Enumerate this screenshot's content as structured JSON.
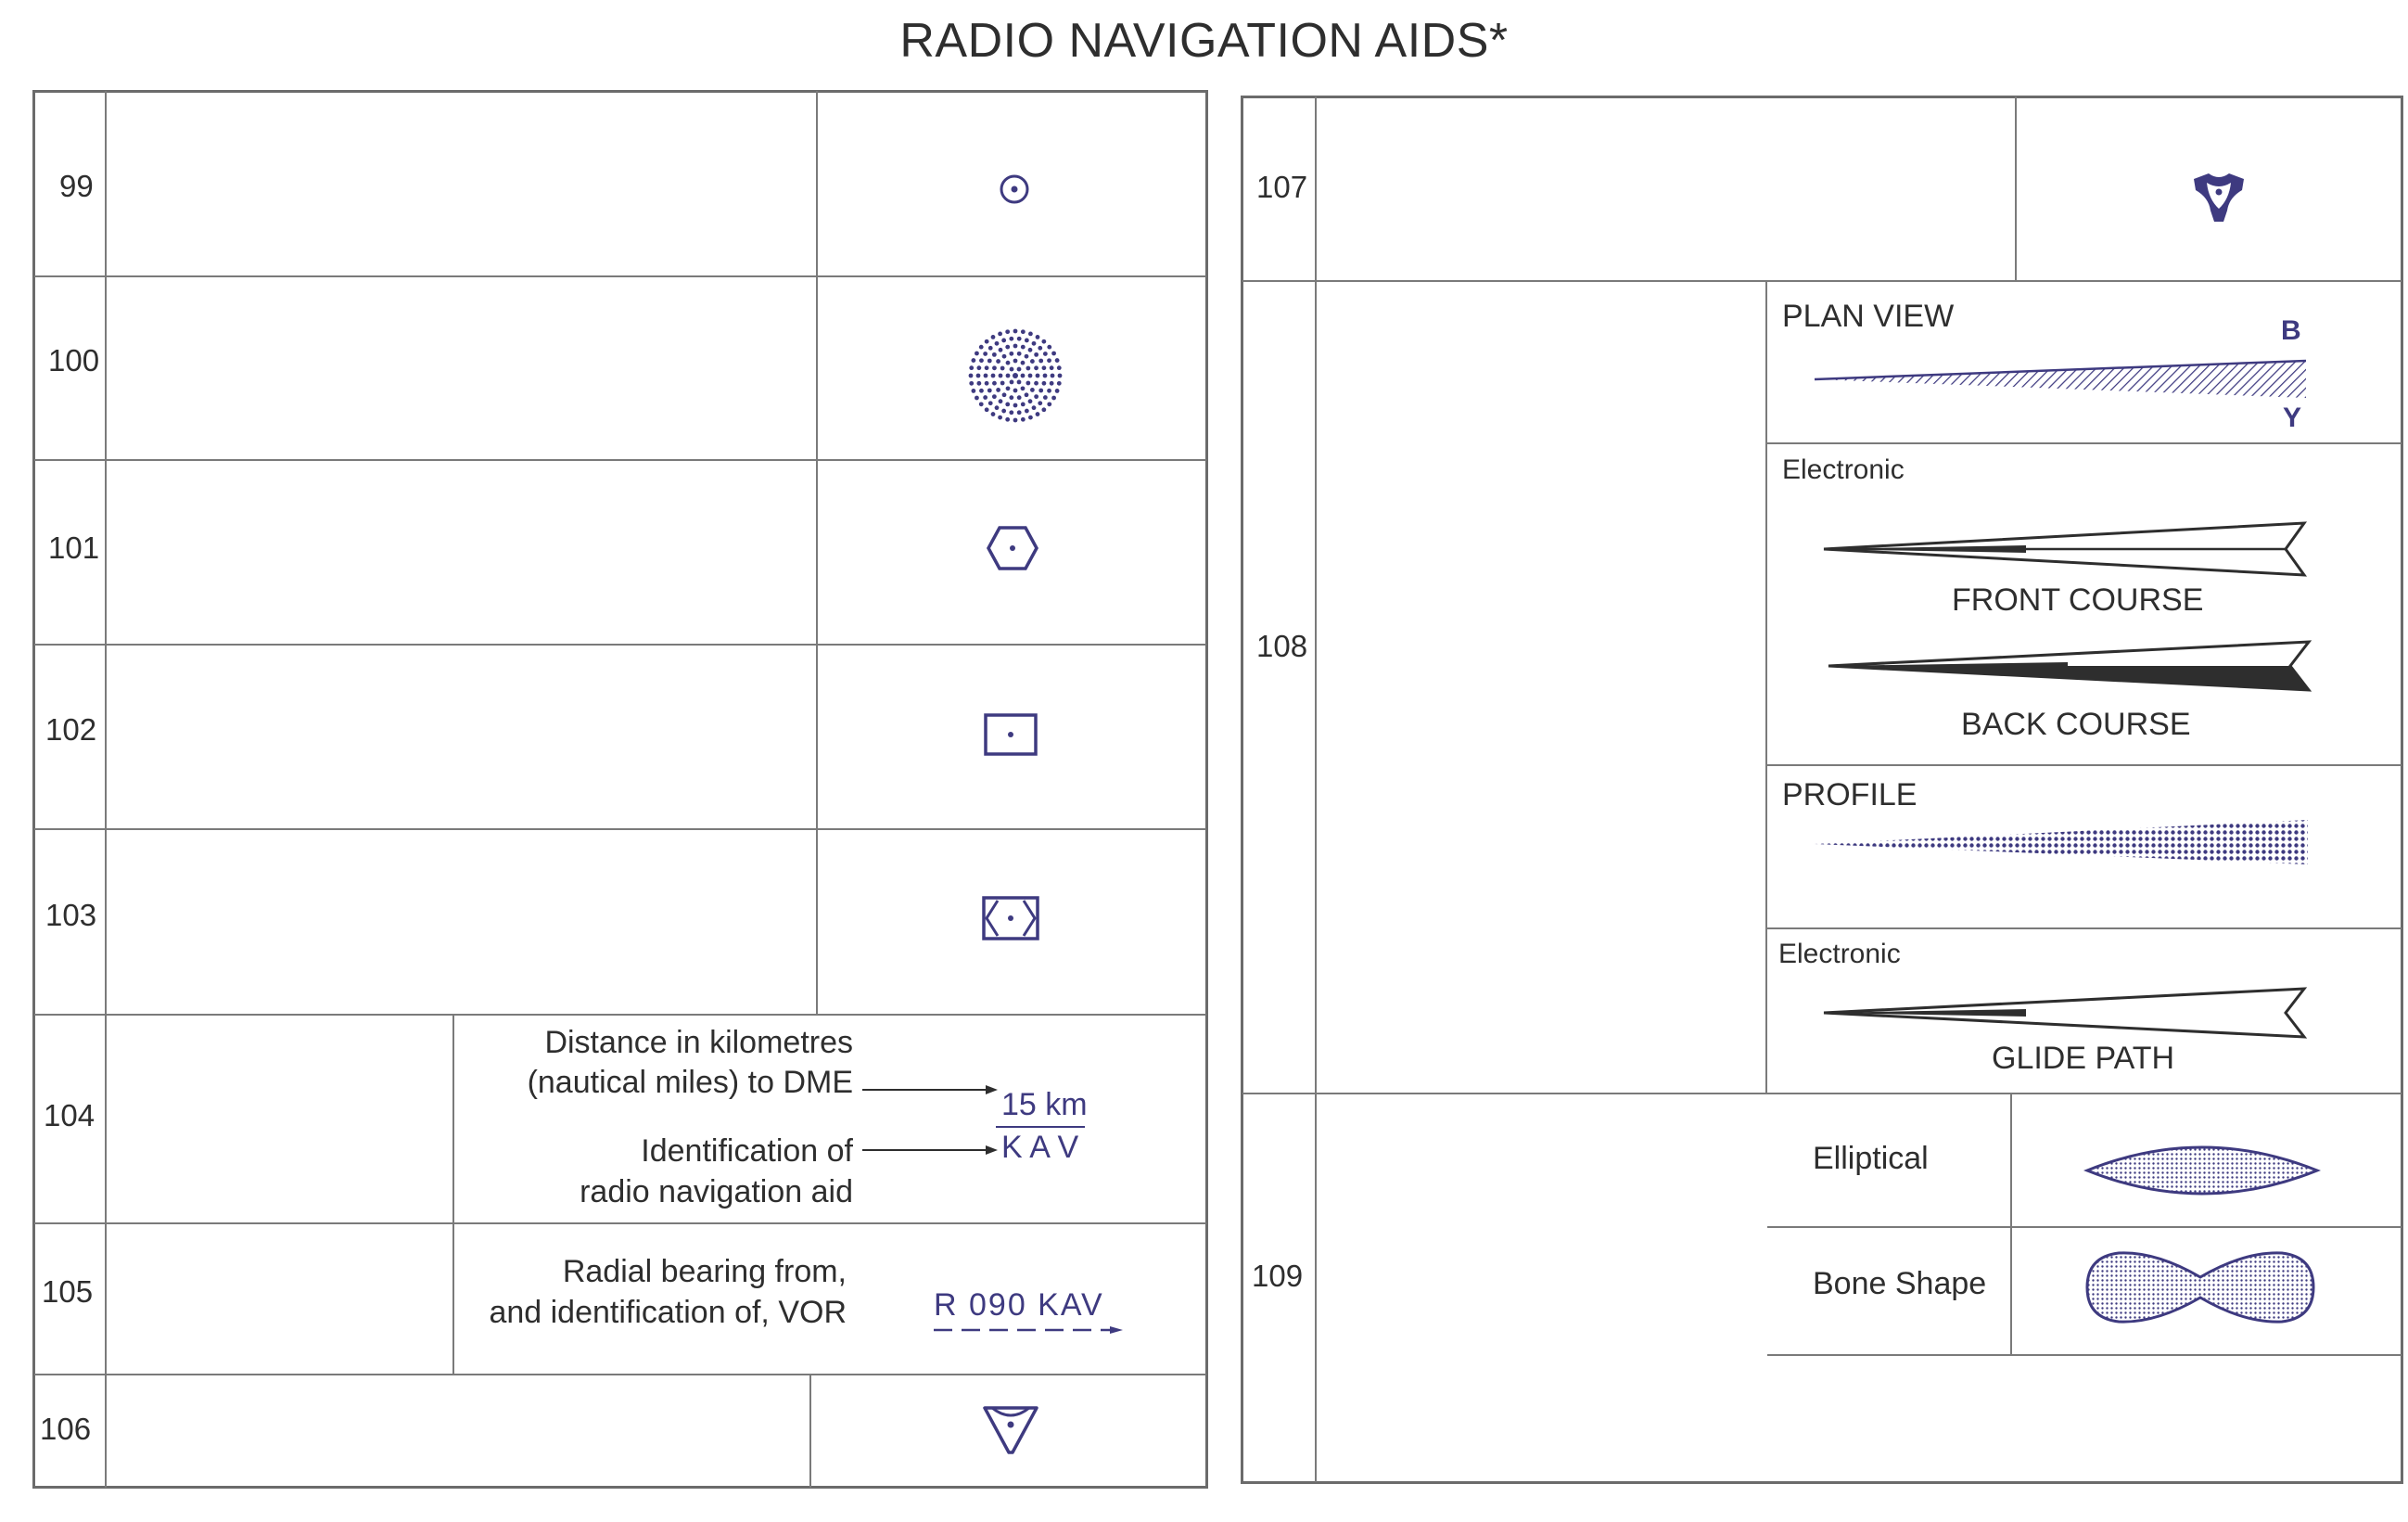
{
  "title": "RADIO NAVIGATION AIDS*",
  "colors": {
    "symbol": "#3e3a80",
    "line": "#7a7a7a",
    "text": "#2e2e2e"
  },
  "rows_left": [
    {
      "number": "99",
      "symbol_icon": "dot-circle-icon"
    },
    {
      "number": "100",
      "symbol_icon": "dotted-circle-icon"
    },
    {
      "number": "101",
      "symbol_icon": "hexagon-icon"
    },
    {
      "number": "102",
      "symbol_icon": "square-dot-icon"
    },
    {
      "number": "103",
      "symbol_icon": "square-hexagon-icon"
    },
    {
      "number": "104",
      "description": [
        "Distance in kilometres",
        "(nautical miles) to DME",
        "Identification of",
        "radio navigation aid"
      ],
      "sample_distance": "15 km",
      "sample_ident": "K A V"
    },
    {
      "number": "105",
      "description": [
        "Radial bearing from,",
        "and identification of, VOR"
      ],
      "sample": "R 090 KAV"
    },
    {
      "number": "106",
      "symbol_icon": "triangle-dot-icon"
    }
  ],
  "rows_right": [
    {
      "number": "107",
      "symbol_icon": "trefoil-dot-icon"
    },
    {
      "number": "108",
      "plan_view": {
        "label": "PLAN VIEW",
        "end_top": "B",
        "end_bottom": "Y"
      },
      "electronic_label": "Electronic",
      "front_course": "FRONT COURSE",
      "back_course": "BACK COURSE",
      "profile": "PROFILE",
      "electronic_label_2": "Electronic",
      "glide_path": "GLIDE PATH"
    },
    {
      "number": "109",
      "elliptical": "Elliptical",
      "bone_shape": "Bone Shape"
    }
  ]
}
